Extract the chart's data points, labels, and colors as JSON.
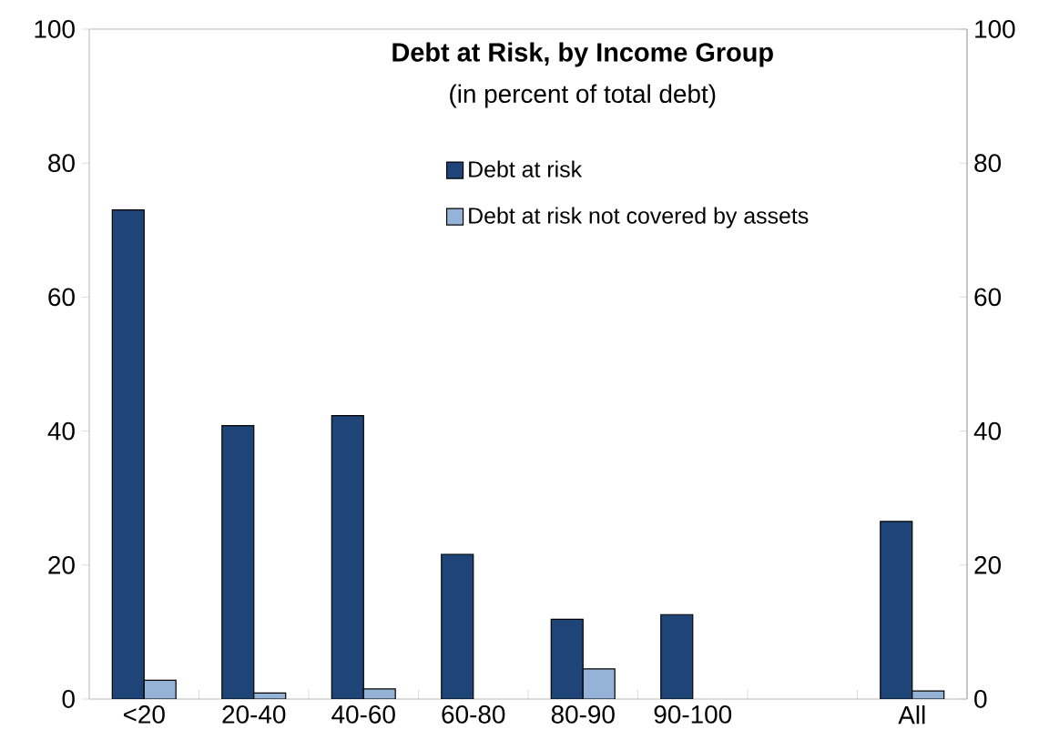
{
  "chart_data": {
    "type": "bar",
    "title": "Debt at Risk, by Income Group",
    "subtitle": "(in percent of total debt)",
    "categories": [
      "<20",
      "20-40",
      "40-60",
      "60-80",
      "80-90",
      "90-100",
      null,
      "All"
    ],
    "series": [
      {
        "name": "Debt at risk",
        "color": "#1f4578",
        "values": [
          73.0,
          40.8,
          42.3,
          21.6,
          11.9,
          12.6,
          null,
          26.5
        ]
      },
      {
        "name": "Debt at risk not covered by assets",
        "color": "#95b3d7",
        "values": [
          2.8,
          0.9,
          1.5,
          null,
          4.5,
          null,
          null,
          1.2
        ]
      }
    ],
    "ylim": [
      0,
      100
    ],
    "yticks": [
      0,
      20,
      40,
      60,
      80,
      100
    ],
    "y2lim": [
      0,
      100
    ],
    "y2ticks": [
      0,
      20,
      40,
      60,
      80,
      100
    ],
    "legend": "top",
    "grid": false
  }
}
